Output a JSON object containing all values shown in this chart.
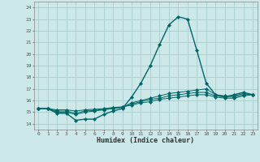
{
  "xlabel": "Humidex (Indice chaleur)",
  "xlim": [
    -0.5,
    23.5
  ],
  "ylim": [
    13.5,
    24.5
  ],
  "yticks": [
    14,
    15,
    16,
    17,
    18,
    19,
    20,
    21,
    22,
    23,
    24
  ],
  "xticks": [
    0,
    1,
    2,
    3,
    4,
    5,
    6,
    7,
    8,
    9,
    10,
    11,
    12,
    13,
    14,
    15,
    16,
    17,
    18,
    19,
    20,
    21,
    22,
    23
  ],
  "bg_color": "#cce8e8",
  "grid_color": "#aacccc",
  "line_color": "#006666",
  "lines": [
    [
      15.3,
      15.3,
      14.9,
      14.9,
      14.3,
      14.4,
      14.4,
      14.8,
      15.1,
      15.3,
      16.3,
      17.5,
      19.0,
      20.8,
      22.5,
      23.2,
      23.0,
      20.3,
      17.5,
      16.5,
      16.3,
      16.5,
      16.7,
      16.5
    ],
    [
      15.3,
      15.3,
      15.0,
      15.0,
      14.8,
      15.0,
      15.1,
      15.2,
      15.3,
      15.4,
      15.8,
      16.0,
      16.2,
      16.4,
      16.6,
      16.7,
      16.8,
      16.9,
      17.0,
      16.5,
      16.4,
      16.4,
      16.6,
      16.5
    ],
    [
      15.3,
      15.3,
      15.1,
      15.1,
      14.9,
      15.1,
      15.15,
      15.25,
      15.35,
      15.45,
      15.7,
      15.9,
      16.1,
      16.2,
      16.4,
      16.5,
      16.6,
      16.7,
      16.7,
      16.4,
      16.3,
      16.3,
      16.5,
      16.5
    ],
    [
      15.3,
      15.3,
      15.2,
      15.2,
      15.1,
      15.2,
      15.25,
      15.3,
      15.4,
      15.45,
      15.6,
      15.8,
      15.9,
      16.1,
      16.2,
      16.3,
      16.4,
      16.5,
      16.5,
      16.3,
      16.2,
      16.2,
      16.4,
      16.5
    ]
  ]
}
